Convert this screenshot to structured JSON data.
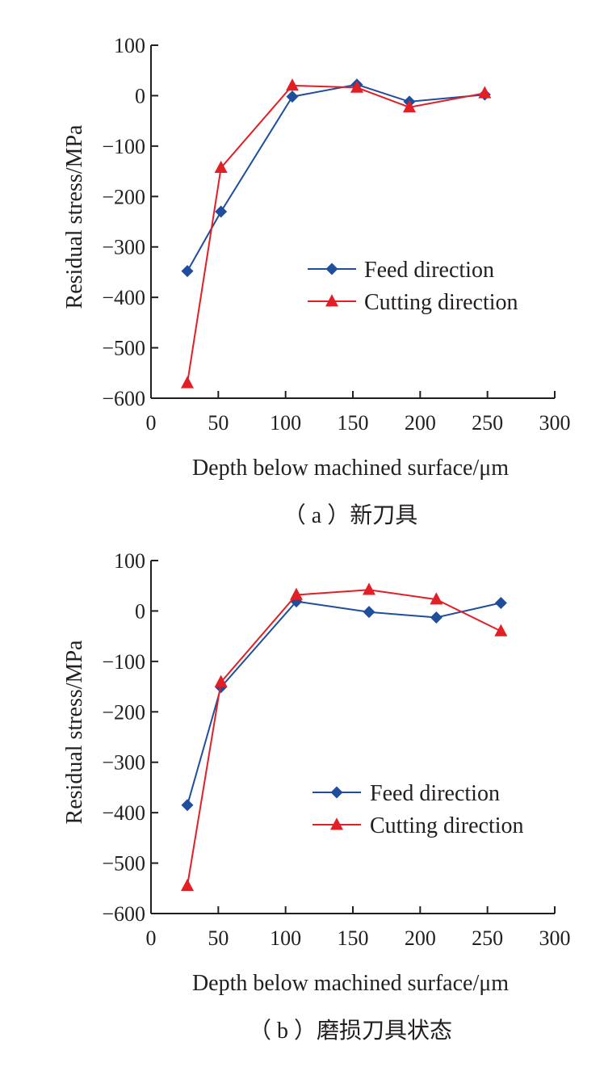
{
  "chart_data": [
    {
      "type": "line",
      "caption": "（ a ）新刀具",
      "xlabel": "Depth below machined surface/μm",
      "ylabel": "Residual stress/MPa",
      "xlim": [
        0,
        300
      ],
      "ylim": [
        -600,
        100
      ],
      "xticks": [
        "0",
        "50",
        "100",
        "150",
        "200",
        "250",
        "300"
      ],
      "yticks": [
        "100",
        "0",
        "−100",
        "−200",
        "−300",
        "−400",
        "−500",
        "−600"
      ],
      "grid": false,
      "legend_position": "center-right",
      "series": [
        {
          "name": "Feed direction",
          "color": "#1f4e9c",
          "marker": "diamond",
          "x": [
            27,
            52,
            105,
            153,
            192,
            248
          ],
          "y": [
            -348,
            -230,
            -2,
            22,
            -12,
            2
          ]
        },
        {
          "name": "Cutting direction",
          "color": "#e31e24",
          "marker": "triangle",
          "x": [
            27,
            52,
            105,
            153,
            192,
            248
          ],
          "y": [
            -570,
            -143,
            20,
            16,
            -23,
            5
          ]
        }
      ]
    },
    {
      "type": "line",
      "caption": "（ b ）磨损刀具状态",
      "xlabel": "Depth below machined surface/μm",
      "ylabel": "Residual stress/MPa",
      "xlim": [
        0,
        300
      ],
      "ylim": [
        -600,
        100
      ],
      "xticks": [
        "0",
        "50",
        "100",
        "150",
        "200",
        "250",
        "300"
      ],
      "yticks": [
        "100",
        "0",
        "−100",
        "−200",
        "−300",
        "−400",
        "−500",
        "−600"
      ],
      "grid": false,
      "legend_position": "center-right",
      "series": [
        {
          "name": "Feed direction",
          "color": "#1f4e9c",
          "marker": "diamond",
          "x": [
            27,
            52,
            108,
            162,
            212,
            260
          ],
          "y": [
            -385,
            -151,
            19,
            -2,
            -13,
            16
          ]
        },
        {
          "name": "Cutting direction",
          "color": "#e31e24",
          "marker": "triangle",
          "x": [
            27,
            52,
            108,
            162,
            212,
            260
          ],
          "y": [
            -545,
            -141,
            32,
            42,
            23,
            -40
          ]
        }
      ]
    }
  ]
}
